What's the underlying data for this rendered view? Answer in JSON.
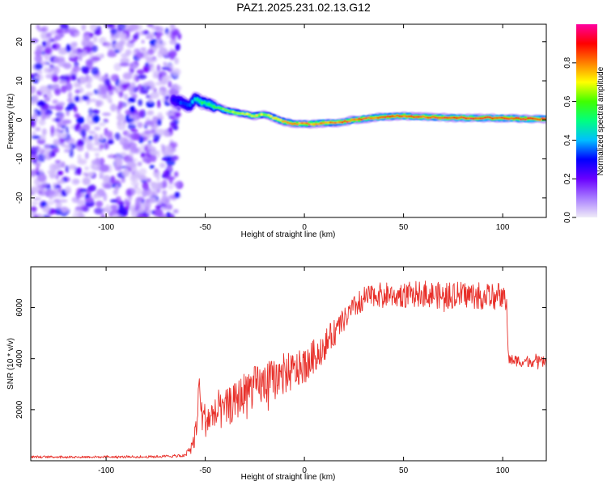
{
  "title": "PAZ1.2025.231.02.13.G12",
  "colors": {
    "snr_line": "#e8302a",
    "axis": "#000000",
    "scatter": "#7a2bff"
  },
  "chart_data": [
    {
      "type": "heatmap",
      "title": "PAZ1.2025.231.02.13.G12",
      "xlabel": "Height of straight line (km)",
      "ylabel": "Frequency (Hz)",
      "xlim": [
        -138,
        122
      ],
      "ylim": [
        -25,
        24.5
      ],
      "xticks": [
        -100,
        -50,
        0,
        50,
        100
      ],
      "yticks": [
        -20,
        -10,
        0,
        10,
        20
      ],
      "colorbar": {
        "label": "Normalized spectral amplitude",
        "range": [
          0,
          1
        ],
        "ticks": [
          0.0,
          0.2,
          0.4,
          0.6,
          0.8
        ],
        "ticklabels": [
          "0.0",
          "0.2",
          "0.4",
          "0.6",
          "0.8"
        ],
        "colormap": [
          "#f0ecf8",
          "#a87cff",
          "#6a00ff",
          "#0000ff",
          "#00bfff",
          "#00ff80",
          "#40ff00",
          "#ffff00",
          "#ff8000",
          "#ff0000",
          "#ff00a0"
        ]
      },
      "noise_region": {
        "x_range": [
          -138,
          -63
        ],
        "freq_range": [
          -25,
          24.5
        ],
        "level": "low (0.0-0.15)"
      },
      "signal_track": {
        "x": [
          -66,
          -62,
          -58,
          -55,
          -52,
          -48,
          -44,
          -40,
          -36,
          -30,
          -25,
          -20,
          -15,
          -10,
          -5,
          0,
          5,
          10,
          15,
          20,
          25,
          30,
          40,
          50,
          60,
          70,
          80,
          90,
          100,
          110,
          122
        ],
        "freq": [
          5,
          4.5,
          3.5,
          5.5,
          4.5,
          4,
          3.2,
          2.5,
          2,
          1.5,
          1,
          1.5,
          0.5,
          -0.5,
          -1,
          -1,
          -1,
          -0.8,
          -0.8,
          -0.5,
          0,
          0.3,
          0.8,
          1,
          0.8,
          0.6,
          0.5,
          0.5,
          0.5,
          0.3,
          0.2
        ],
        "amp": [
          0.3,
          0.35,
          0.4,
          0.45,
          0.55,
          0.55,
          0.6,
          0.65,
          0.7,
          0.7,
          0.75,
          0.7,
          0.75,
          0.8,
          0.85,
          0.85,
          0.85,
          0.85,
          0.85,
          0.9,
          0.9,
          0.9,
          0.9,
          0.92,
          0.92,
          0.95,
          0.95,
          0.95,
          0.95,
          0.95,
          0.95
        ]
      }
    },
    {
      "type": "line",
      "xlabel": "Height of straight line (km)",
      "ylabel": "SNR (10 * v/v)",
      "xlim": [
        -138,
        122
      ],
      "ylim": [
        0,
        7600
      ],
      "xticks": [
        -100,
        -50,
        0,
        50,
        100
      ],
      "yticks": [
        2000,
        4000,
        6000
      ],
      "series": [
        {
          "name": "SNR",
          "x": [
            -138,
            -110,
            -80,
            -60,
            -56,
            -54,
            -53,
            -52,
            -50,
            -45,
            -40,
            -35,
            -30,
            -25,
            -20,
            -15,
            -10,
            -5,
            0,
            5,
            10,
            15,
            20,
            25,
            30,
            35,
            40,
            50,
            60,
            70,
            80,
            90,
            100,
            102,
            103,
            110,
            115,
            122
          ],
          "mean": [
            150,
            150,
            150,
            200,
            700,
            1500,
            3200,
            1800,
            1600,
            1800,
            2000,
            2300,
            2700,
            2900,
            3000,
            3200,
            3400,
            3500,
            3700,
            4100,
            4500,
            5000,
            5500,
            6000,
            6300,
            6500,
            6500,
            6500,
            6550,
            6450,
            6500,
            6450,
            6450,
            6200,
            3950,
            3900,
            3900,
            3850
          ],
          "spread": [
            60,
            60,
            60,
            80,
            500,
            800,
            600,
            900,
            900,
            900,
            1000,
            1000,
            1100,
            1100,
            1100,
            1100,
            1100,
            1000,
            900,
            900,
            800,
            700,
            600,
            600,
            600,
            600,
            650,
            650,
            700,
            700,
            700,
            700,
            700,
            500,
            300,
            300,
            300,
            300
          ]
        }
      ]
    }
  ]
}
